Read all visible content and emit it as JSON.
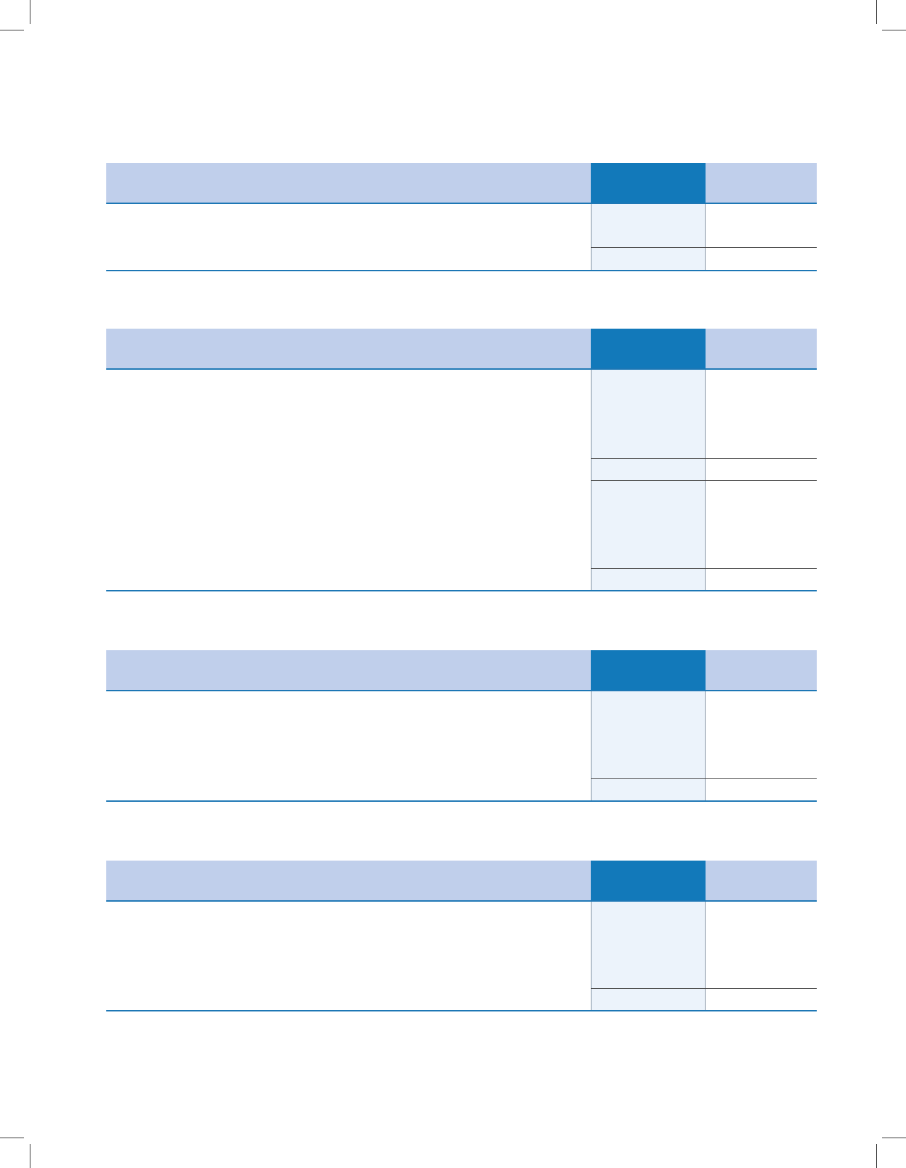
{
  "page": {
    "tables": [
      {
        "id": "table-1",
        "groups": [
          {
            "rows": 2
          }
        ]
      },
      {
        "id": "table-2",
        "groups": [
          {
            "rows": 4
          },
          {
            "rows": 4
          }
        ]
      },
      {
        "id": "table-3",
        "groups": [
          {
            "rows": 4
          }
        ]
      },
      {
        "id": "table-4",
        "groups": [
          {
            "rows": 4
          }
        ]
      }
    ]
  },
  "colors": {
    "header_fill": "#c0cfeb",
    "header_current_fill": "#1279ba",
    "current_column_fill": "#ecf3fb",
    "rule": "#1d77b5"
  }
}
